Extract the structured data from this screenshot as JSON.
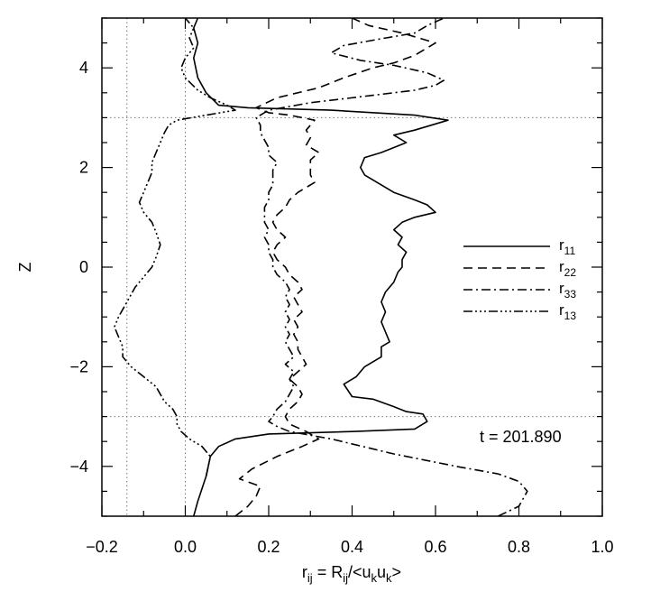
{
  "chart_data": {
    "type": "line",
    "xlabel_parts": {
      "r": "r",
      "r_sub": "ij",
      "eq": " = R",
      "R_sub": "ij",
      "mid": "/<u",
      "u1_sub": "k",
      "u": "u",
      "u2_sub": "k",
      "end": ">"
    },
    "ylabel": "Z",
    "xlim": [
      -0.2,
      1.0
    ],
    "ylim": [
      -5,
      5
    ],
    "x_ticks": [
      -0.2,
      0.0,
      0.2,
      0.4,
      0.6,
      0.8,
      1.0
    ],
    "x_tick_labels": [
      "−0.2",
      "0.0",
      "0.2",
      "0.4",
      "0.6",
      "0.8",
      "1.0"
    ],
    "y_ticks": [
      -4,
      -2,
      0,
      2,
      4
    ],
    "y_tick_labels": [
      "−4",
      "−2",
      "0",
      "2",
      "4"
    ],
    "reference_lines": {
      "vertical": [
        -0.14,
        0.0
      ],
      "horizontal": [
        -3,
        3
      ]
    },
    "legend_position": "right",
    "annotation": "t = 201.890",
    "series": [
      {
        "name": "r",
        "sub": "11",
        "dash": "solid",
        "points": [
          [
            0.02,
            -5.0
          ],
          [
            0.03,
            -4.7
          ],
          [
            0.05,
            -4.2
          ],
          [
            0.06,
            -3.8
          ],
          [
            0.08,
            -3.6
          ],
          [
            0.12,
            -3.45
          ],
          [
            0.2,
            -3.35
          ],
          [
            0.4,
            -3.3
          ],
          [
            0.55,
            -3.25
          ],
          [
            0.58,
            -3.1
          ],
          [
            0.57,
            -2.95
          ],
          [
            0.53,
            -2.9
          ],
          [
            0.5,
            -2.8
          ],
          [
            0.45,
            -2.65
          ],
          [
            0.4,
            -2.6
          ],
          [
            0.38,
            -2.35
          ],
          [
            0.41,
            -2.2
          ],
          [
            0.43,
            -2.0
          ],
          [
            0.45,
            -1.9
          ],
          [
            0.47,
            -1.8
          ],
          [
            0.47,
            -1.6
          ],
          [
            0.49,
            -1.5
          ],
          [
            0.48,
            -1.3
          ],
          [
            0.47,
            -1.1
          ],
          [
            0.48,
            -0.9
          ],
          [
            0.47,
            -0.7
          ],
          [
            0.48,
            -0.5
          ],
          [
            0.5,
            -0.3
          ],
          [
            0.51,
            -0.1
          ],
          [
            0.52,
            0.0
          ],
          [
            0.52,
            0.15
          ],
          [
            0.53,
            0.3
          ],
          [
            0.51,
            0.45
          ],
          [
            0.52,
            0.6
          ],
          [
            0.5,
            0.75
          ],
          [
            0.52,
            0.9
          ],
          [
            0.55,
            1.0
          ],
          [
            0.6,
            1.1
          ],
          [
            0.58,
            1.25
          ],
          [
            0.55,
            1.35
          ],
          [
            0.5,
            1.5
          ],
          [
            0.46,
            1.7
          ],
          [
            0.43,
            1.85
          ],
          [
            0.42,
            2.0
          ],
          [
            0.43,
            2.2
          ],
          [
            0.47,
            2.3
          ],
          [
            0.5,
            2.4
          ],
          [
            0.53,
            2.5
          ],
          [
            0.5,
            2.65
          ],
          [
            0.55,
            2.75
          ],
          [
            0.63,
            2.95
          ],
          [
            0.55,
            3.05
          ],
          [
            0.35,
            3.15
          ],
          [
            0.15,
            3.2
          ],
          [
            0.08,
            3.25
          ],
          [
            0.05,
            3.5
          ],
          [
            0.03,
            3.8
          ],
          [
            0.02,
            4.2
          ],
          [
            0.03,
            4.5
          ],
          [
            0.02,
            4.8
          ],
          [
            0.03,
            5.0
          ]
        ]
      },
      {
        "name": "r",
        "sub": "22",
        "dash": "10,6",
        "points": [
          [
            0.12,
            -5.0
          ],
          [
            0.15,
            -4.8
          ],
          [
            0.17,
            -4.6
          ],
          [
            0.18,
            -4.4
          ],
          [
            0.13,
            -4.25
          ],
          [
            0.16,
            -4.05
          ],
          [
            0.22,
            -3.8
          ],
          [
            0.28,
            -3.6
          ],
          [
            0.32,
            -3.45
          ],
          [
            0.29,
            -3.3
          ],
          [
            0.25,
            -3.15
          ],
          [
            0.24,
            -3.0
          ],
          [
            0.25,
            -2.85
          ],
          [
            0.27,
            -2.7
          ],
          [
            0.28,
            -2.55
          ],
          [
            0.27,
            -2.4
          ],
          [
            0.25,
            -2.25
          ],
          [
            0.27,
            -2.1
          ],
          [
            0.29,
            -1.95
          ],
          [
            0.28,
            -1.8
          ],
          [
            0.27,
            -1.65
          ],
          [
            0.27,
            -1.5
          ],
          [
            0.26,
            -1.35
          ],
          [
            0.27,
            -1.2
          ],
          [
            0.26,
            -1.05
          ],
          [
            0.28,
            -0.9
          ],
          [
            0.27,
            -0.75
          ],
          [
            0.26,
            -0.6
          ],
          [
            0.28,
            -0.45
          ],
          [
            0.27,
            -0.3
          ],
          [
            0.25,
            -0.15
          ],
          [
            0.24,
            0.0
          ],
          [
            0.22,
            0.15
          ],
          [
            0.21,
            0.3
          ],
          [
            0.22,
            0.45
          ],
          [
            0.24,
            0.6
          ],
          [
            0.22,
            0.75
          ],
          [
            0.21,
            0.9
          ],
          [
            0.22,
            1.05
          ],
          [
            0.24,
            1.2
          ],
          [
            0.25,
            1.35
          ],
          [
            0.27,
            1.5
          ],
          [
            0.29,
            1.6
          ],
          [
            0.31,
            1.7
          ],
          [
            0.3,
            1.85
          ],
          [
            0.3,
            2.0
          ],
          [
            0.3,
            2.15
          ],
          [
            0.32,
            2.3
          ],
          [
            0.29,
            2.45
          ],
          [
            0.3,
            2.6
          ],
          [
            0.29,
            2.75
          ],
          [
            0.31,
            2.95
          ],
          [
            0.25,
            3.05
          ],
          [
            0.2,
            3.1
          ],
          [
            0.17,
            3.2
          ],
          [
            0.22,
            3.4
          ],
          [
            0.32,
            3.6
          ],
          [
            0.38,
            3.8
          ],
          [
            0.45,
            4.0
          ],
          [
            0.5,
            4.1
          ],
          [
            0.55,
            4.25
          ],
          [
            0.6,
            4.5
          ],
          [
            0.52,
            4.7
          ],
          [
            0.44,
            4.85
          ],
          [
            0.4,
            5.0
          ]
        ]
      },
      {
        "name": "r",
        "sub": "33",
        "dash": "10,4,2,4",
        "points": [
          [
            0.75,
            -5.0
          ],
          [
            0.8,
            -4.8
          ],
          [
            0.82,
            -4.5
          ],
          [
            0.8,
            -4.3
          ],
          [
            0.75,
            -4.15
          ],
          [
            0.65,
            -4.0
          ],
          [
            0.5,
            -3.75
          ],
          [
            0.35,
            -3.45
          ],
          [
            0.25,
            -3.3
          ],
          [
            0.22,
            -3.2
          ],
          [
            0.2,
            -3.1
          ],
          [
            0.21,
            -3.0
          ],
          [
            0.22,
            -2.85
          ],
          [
            0.24,
            -2.7
          ],
          [
            0.25,
            -2.55
          ],
          [
            0.26,
            -2.4
          ],
          [
            0.25,
            -2.25
          ],
          [
            0.26,
            -2.1
          ],
          [
            0.24,
            -1.95
          ],
          [
            0.26,
            -1.8
          ],
          [
            0.25,
            -1.65
          ],
          [
            0.24,
            -1.5
          ],
          [
            0.25,
            -1.35
          ],
          [
            0.24,
            -1.2
          ],
          [
            0.25,
            -1.05
          ],
          [
            0.24,
            -0.9
          ],
          [
            0.25,
            -0.75
          ],
          [
            0.24,
            -0.6
          ],
          [
            0.25,
            -0.45
          ],
          [
            0.24,
            -0.3
          ],
          [
            0.22,
            -0.15
          ],
          [
            0.21,
            0.0
          ],
          [
            0.21,
            0.15
          ],
          [
            0.2,
            0.3
          ],
          [
            0.2,
            0.45
          ],
          [
            0.19,
            0.6
          ],
          [
            0.2,
            0.75
          ],
          [
            0.19,
            0.9
          ],
          [
            0.19,
            1.05
          ],
          [
            0.19,
            1.2
          ],
          [
            0.2,
            1.35
          ],
          [
            0.2,
            1.5
          ],
          [
            0.21,
            1.65
          ],
          [
            0.21,
            1.8
          ],
          [
            0.21,
            1.95
          ],
          [
            0.22,
            2.1
          ],
          [
            0.2,
            2.25
          ],
          [
            0.2,
            2.4
          ],
          [
            0.19,
            2.55
          ],
          [
            0.18,
            2.7
          ],
          [
            0.18,
            2.85
          ],
          [
            0.17,
            3.0
          ],
          [
            0.2,
            3.15
          ],
          [
            0.3,
            3.3
          ],
          [
            0.45,
            3.45
          ],
          [
            0.55,
            3.55
          ],
          [
            0.6,
            3.65
          ],
          [
            0.62,
            3.75
          ],
          [
            0.58,
            3.9
          ],
          [
            0.5,
            4.05
          ],
          [
            0.42,
            4.15
          ],
          [
            0.35,
            4.3
          ],
          [
            0.38,
            4.45
          ],
          [
            0.48,
            4.6
          ],
          [
            0.55,
            4.7
          ],
          [
            0.58,
            4.85
          ],
          [
            0.62,
            5.0
          ]
        ]
      },
      {
        "name": "r",
        "sub": "13",
        "dash": "10,3,2,3,2,3,2,3",
        "points": [
          [
            0.05,
            -4.2
          ],
          [
            0.06,
            -3.8
          ],
          [
            0.04,
            -3.6
          ],
          [
            0.01,
            -3.45
          ],
          [
            -0.01,
            -3.3
          ],
          [
            -0.02,
            -3.15
          ],
          [
            -0.02,
            -3.0
          ],
          [
            -0.03,
            -2.85
          ],
          [
            -0.05,
            -2.7
          ],
          [
            -0.06,
            -2.55
          ],
          [
            -0.07,
            -2.4
          ],
          [
            -0.1,
            -2.2
          ],
          [
            -0.13,
            -2.0
          ],
          [
            -0.15,
            -1.8
          ],
          [
            -0.15,
            -1.6
          ],
          [
            -0.16,
            -1.4
          ],
          [
            -0.17,
            -1.2
          ],
          [
            -0.16,
            -1.0
          ],
          [
            -0.14,
            -0.7
          ],
          [
            -0.12,
            -0.4
          ],
          [
            -0.1,
            -0.2
          ],
          [
            -0.08,
            0.0
          ],
          [
            -0.07,
            0.2
          ],
          [
            -0.06,
            0.45
          ],
          [
            -0.07,
            0.7
          ],
          [
            -0.08,
            0.9
          ],
          [
            -0.1,
            1.1
          ],
          [
            -0.11,
            1.3
          ],
          [
            -0.1,
            1.5
          ],
          [
            -0.09,
            1.7
          ],
          [
            -0.08,
            1.9
          ],
          [
            -0.08,
            2.1
          ],
          [
            -0.07,
            2.3
          ],
          [
            -0.06,
            2.5
          ],
          [
            -0.05,
            2.7
          ],
          [
            -0.04,
            2.85
          ],
          [
            -0.02,
            2.95
          ],
          [
            0.05,
            3.05
          ],
          [
            0.12,
            3.15
          ],
          [
            0.1,
            3.25
          ],
          [
            0.06,
            3.4
          ],
          [
            0.03,
            3.55
          ],
          [
            0.0,
            3.8
          ],
          [
            -0.01,
            4.0
          ],
          [
            0.0,
            4.2
          ],
          [
            0.02,
            4.4
          ],
          [
            0.01,
            4.6
          ],
          [
            0.02,
            4.8
          ],
          [
            0.0,
            5.0
          ]
        ]
      }
    ]
  }
}
